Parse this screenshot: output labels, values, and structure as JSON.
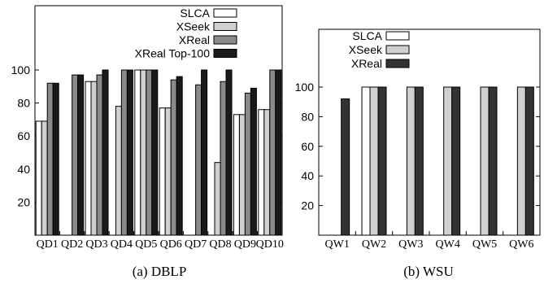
{
  "chart_data": [
    {
      "type": "bar",
      "caption": "(a)  DBLP",
      "categories": [
        "QD1",
        "QD2",
        "QD3",
        "QD4",
        "QD5",
        "QD6",
        "QD7",
        "QD8",
        "QD9",
        "QD10"
      ],
      "series": [
        {
          "name": "SLCA",
          "color": "#ffffff",
          "values": [
            69,
            0,
            93,
            0,
            100,
            77,
            0,
            0,
            73,
            76
          ]
        },
        {
          "name": "XSeek",
          "color": "#d0d0d0",
          "values": [
            69,
            0,
            93,
            78,
            100,
            77,
            0,
            44,
            73,
            76
          ]
        },
        {
          "name": "XReal",
          "color": "#8a8a8a",
          "values": [
            92,
            97,
            97,
            100,
            100,
            94,
            91,
            93,
            86,
            100
          ]
        },
        {
          "name": "XReal Top-100",
          "color": "#1a1a1a",
          "values": [
            92,
            97,
            100,
            100,
            100,
            96,
            100,
            100,
            89,
            100
          ]
        }
      ],
      "ylim": [
        0,
        100
      ],
      "yticks": [
        20,
        40,
        60,
        80,
        100
      ],
      "legend_position": "top-right",
      "grid": false
    },
    {
      "type": "bar",
      "caption": "(b)  WSU",
      "categories": [
        "QW1",
        "QW2",
        "QW3",
        "QW4",
        "QW5",
        "QW6"
      ],
      "series": [
        {
          "name": "SLCA",
          "color": "#ffffff",
          "values": [
            0,
            100,
            0,
            0,
            0,
            0
          ]
        },
        {
          "name": "XSeek",
          "color": "#d0d0d0",
          "values": [
            0,
            100,
            100,
            100,
            100,
            100
          ]
        },
        {
          "name": "XReal",
          "color": "#333333",
          "values": [
            92,
            100,
            100,
            100,
            100,
            100
          ]
        }
      ],
      "ylim": [
        0,
        100
      ],
      "yticks": [
        20,
        40,
        60,
        80,
        100
      ],
      "legend_position": "top-left",
      "grid": false
    }
  ]
}
